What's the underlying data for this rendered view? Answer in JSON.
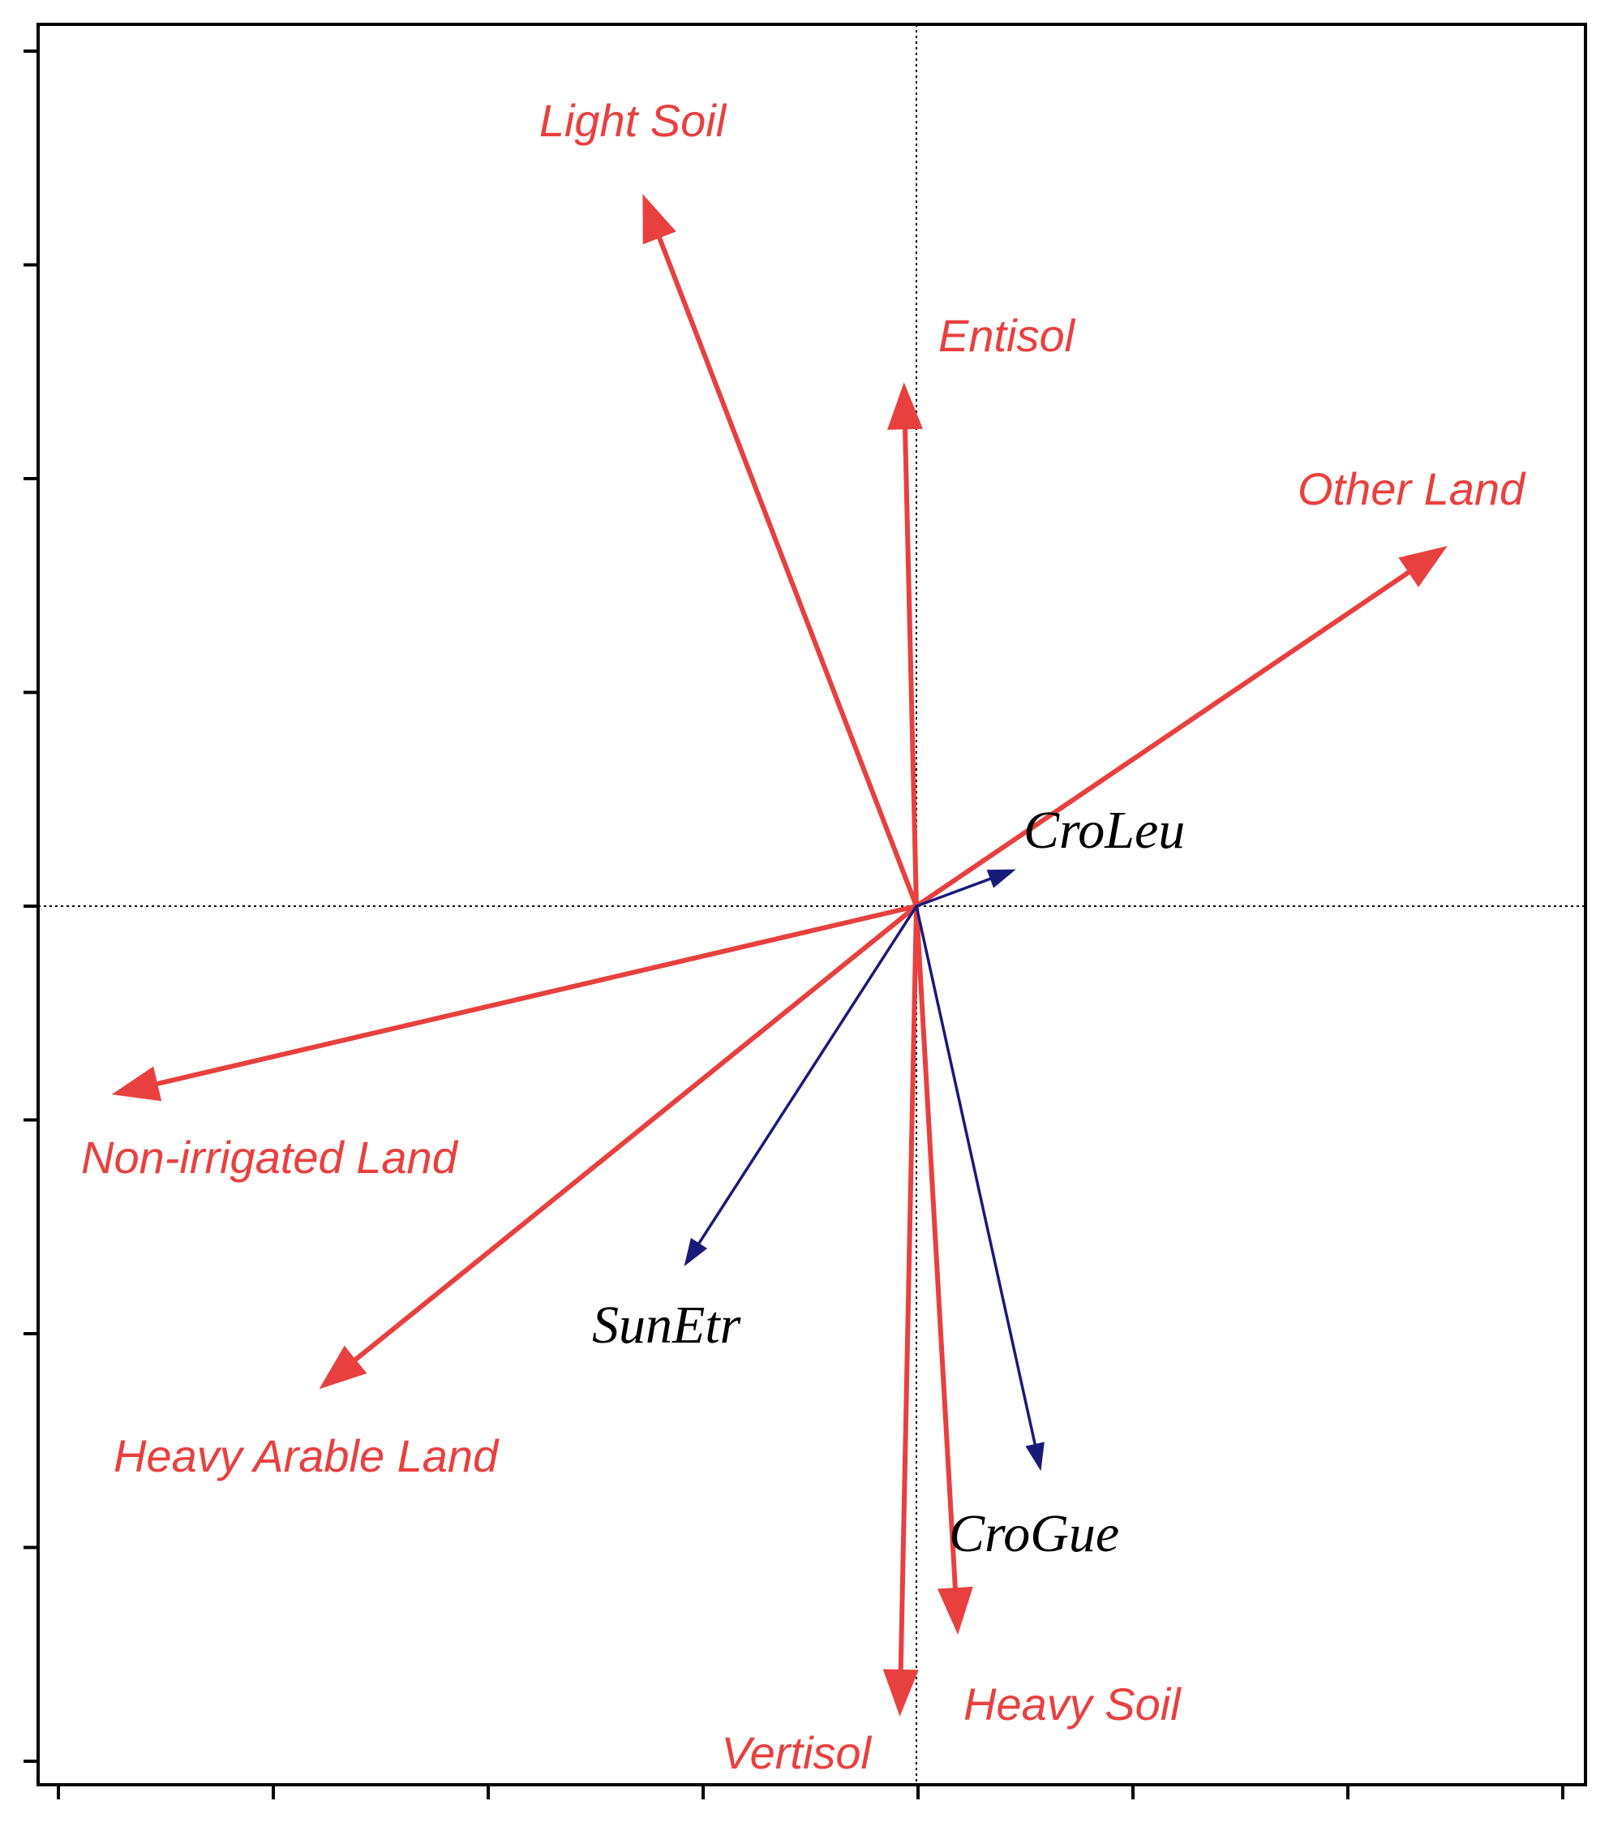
{
  "chart_data": {
    "type": "biplot",
    "title": "",
    "xlabel": "",
    "ylabel": "",
    "xlim": [
      -1.0,
      0.78
    ],
    "ylim": [
      -1.0,
      1.0
    ],
    "origin_lines": "dotted",
    "x_tick_count": 8,
    "y_tick_count": 9,
    "environmental_vectors": {
      "color": "#e8403f",
      "items": [
        {
          "name": "Light Soil",
          "x": -0.33,
          "y": 0.87
        },
        {
          "name": "Entisol",
          "x": -0.015,
          "y": 0.64
        },
        {
          "name": "Other Land",
          "x": 0.64,
          "y": 0.44
        },
        {
          "name": "Non-irrigated Land",
          "x": -0.97,
          "y": -0.23
        },
        {
          "name": "Heavy Arable Land",
          "x": -0.72,
          "y": -0.59
        },
        {
          "name": "Heavy Soil",
          "x": 0.05,
          "y": -0.89
        },
        {
          "name": "Vertisol",
          "x": -0.02,
          "y": -0.99
        }
      ]
    },
    "species_vectors": {
      "color": "#1a1a7a",
      "items": [
        {
          "name": "CroLeu",
          "x": 0.12,
          "y": 0.045
        },
        {
          "name": "SunEtr",
          "x": -0.28,
          "y": -0.44
        },
        {
          "name": "CroGue",
          "x": 0.15,
          "y": -0.69
        }
      ]
    }
  }
}
